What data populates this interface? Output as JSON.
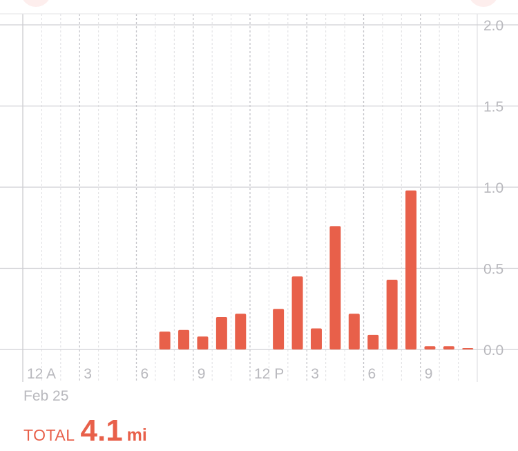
{
  "chart_data": {
    "type": "bar",
    "x": [
      "0",
      "1",
      "2",
      "3",
      "4",
      "5",
      "6",
      "7",
      "8",
      "9",
      "10",
      "11",
      "12",
      "13",
      "14",
      "15",
      "16",
      "17",
      "18",
      "19",
      "20",
      "21",
      "22",
      "23"
    ],
    "values": [
      0,
      0,
      0,
      0,
      0,
      0,
      0,
      0.11,
      0.12,
      0.08,
      0.2,
      0.22,
      0,
      0.25,
      0.45,
      0.13,
      0.76,
      0.22,
      0.09,
      0.43,
      0.98,
      0.02,
      0.02,
      0.005
    ],
    "xtick_labels": [
      "12 A",
      "3",
      "6",
      "9",
      "12 P",
      "3",
      "6",
      "9"
    ],
    "ytick_labels": [
      "2.0",
      "1.5",
      "1.0",
      "0.5",
      "0.0"
    ],
    "ylim": [
      0,
      2.0
    ],
    "grid": true,
    "y_axis_position": "right",
    "bar_color": "#e8604a"
  },
  "footer": {
    "date": "Feb 25",
    "total_label": "TOTAL",
    "total_value": "4.1",
    "total_unit": "mi"
  }
}
